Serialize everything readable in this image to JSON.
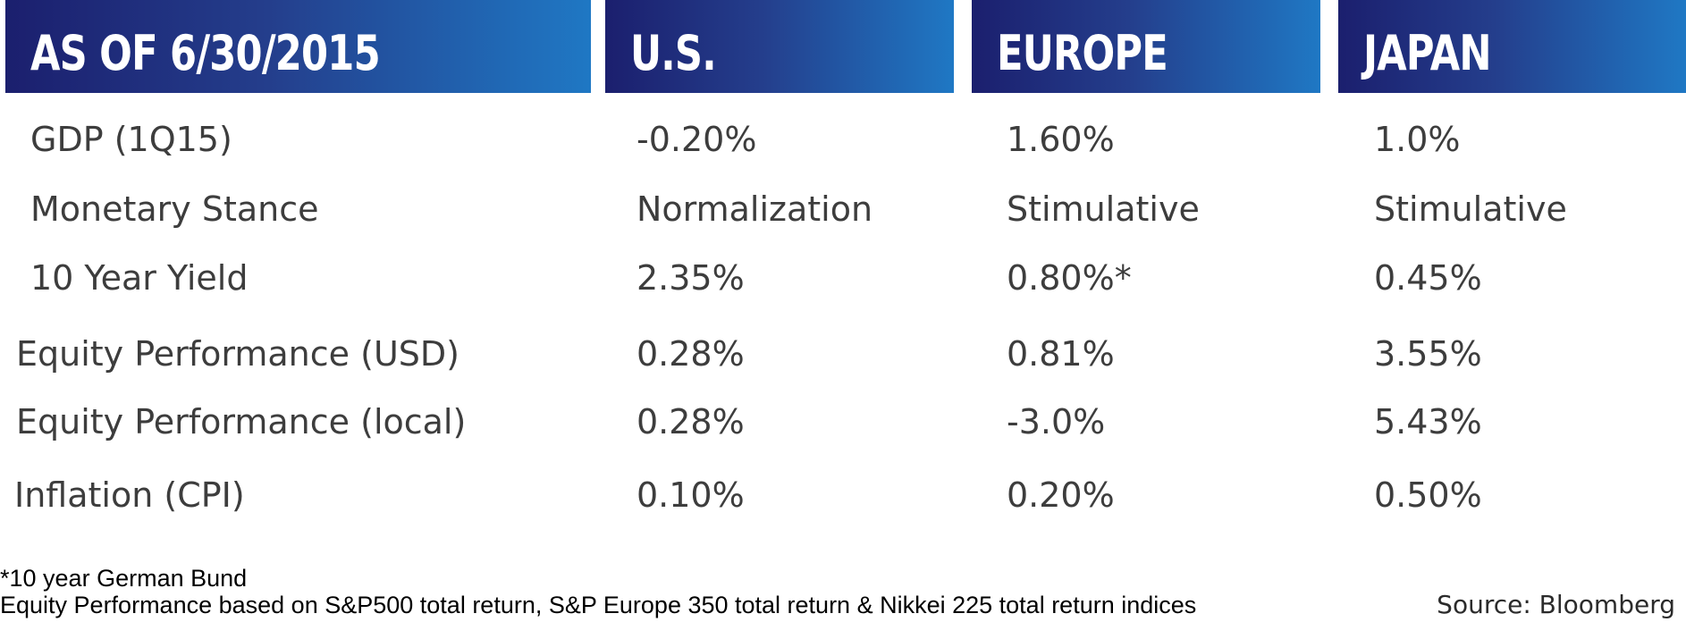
{
  "header": {
    "columns": [
      "AS OF 6/30/2015",
      "U.S.",
      "EUROPE",
      "JAPAN"
    ]
  },
  "rows": [
    {
      "label": "GDP (1Q15)",
      "us": "-0.20%",
      "europe": "1.60%",
      "japan": "1.0%"
    },
    {
      "label": "Monetary Stance",
      "us": "Normalization",
      "europe": "Stimulative",
      "japan": "Stimulative"
    },
    {
      "label": "10 Year Yield",
      "us": "2.35%",
      "europe": "0.80%*",
      "japan": "0.45%"
    },
    {
      "label": "Equity Performance (USD)",
      "us": "0.28%",
      "europe": "0.81%",
      "japan": "3.55%"
    },
    {
      "label": "Equity Performance (local)",
      "us": "0.28%",
      "europe": "-3.0%",
      "japan": "5.43%"
    },
    {
      "label": "Inflation (CPI)",
      "us": "0.10%",
      "europe": "0.20%",
      "japan": "0.50%"
    }
  ],
  "footnotes": {
    "bund": "*10 year German Bund",
    "equity": "Equity Performance based on S&P500 total return, S&P Europe 350 total return & Nikkei 225 total return indices",
    "source": "Source: Bloomberg"
  },
  "colors": {
    "header_start": "#1b1f6e",
    "header_end": "#1f78c4",
    "text": "#3d3d3d"
  }
}
